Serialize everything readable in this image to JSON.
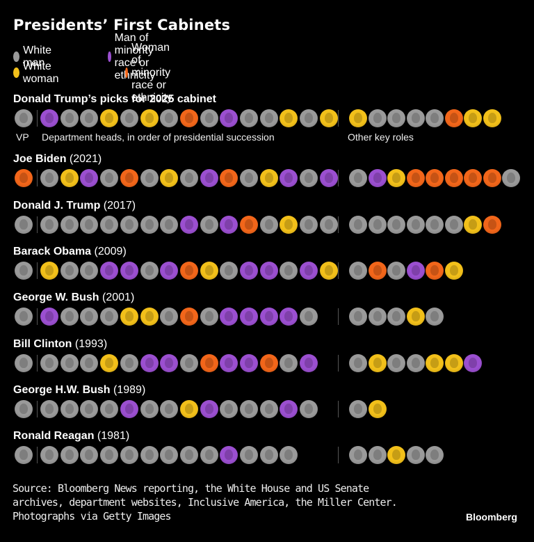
{
  "title": "Presidents’ First Cabinets",
  "legend": [
    {
      "key": "W",
      "label": "White man",
      "color": "#9a9a9a"
    },
    {
      "key": "M",
      "label": "Man of minority race or ethnicity",
      "color": "#9b4fd0"
    },
    {
      "key": "Y",
      "label": "White woman",
      "color": "#f2c01a"
    },
    {
      "key": "O",
      "label": "Woman of minority race or ethnicity",
      "color": "#f2661a"
    }
  ],
  "labels": {
    "vp": "VP",
    "dept": "Department heads, in order of presidential succession",
    "other": "Other key roles"
  },
  "source": [
    "Source: Bloomberg News reporting, the White House and US Senate",
    "archives, department websites, Inclusive America, the Miller Center.",
    "Photographs via Getty Images"
  ],
  "brand": "Bloomberg",
  "chart_data": {
    "type": "table",
    "title": "Presidents’ First Cabinets",
    "encoding": "Each circle is one cabinet member, colored by category: W = White man, M = Man of minority race or ethnicity, Y = White woman, O = Woman of minority race or ethnicity",
    "categories": [
      "White man",
      "Man of minority race or ethnicity",
      "White woman",
      "Woman of minority race or ethnicity"
    ],
    "rows": [
      {
        "name": "Donald Trump’s picks for 2025 cabinet",
        "year": "",
        "vp": "W",
        "department_heads": [
          "M",
          "W",
          "W",
          "Y",
          "W",
          "Y",
          "W",
          "O",
          "W",
          "M",
          "W",
          "W",
          "Y",
          "W",
          "Y"
        ],
        "other_key_roles": [
          "Y",
          "W",
          "W",
          "W",
          "W",
          "O",
          "Y",
          "Y"
        ]
      },
      {
        "name": "Joe Biden",
        "year": "(2021)",
        "vp": "O",
        "department_heads": [
          "W",
          "Y",
          "M",
          "W",
          "O",
          "W",
          "Y",
          "W",
          "M",
          "O",
          "W",
          "Y",
          "M",
          "W",
          "M"
        ],
        "other_key_roles": [
          "W",
          "M",
          "Y",
          "O",
          "O",
          "O",
          "O",
          "O",
          "W"
        ]
      },
      {
        "name": "Donald J. Trump",
        "year": "(2017)",
        "vp": "W",
        "department_heads": [
          "W",
          "W",
          "W",
          "W",
          "W",
          "W",
          "W",
          "M",
          "W",
          "M",
          "O",
          "W",
          "Y",
          "W",
          "W"
        ],
        "other_key_roles": [
          "W",
          "W",
          "W",
          "W",
          "W",
          "W",
          "Y",
          "O"
        ]
      },
      {
        "name": "Barack Obama",
        "year": "(2009)",
        "vp": "W",
        "department_heads": [
          "Y",
          "W",
          "W",
          "M",
          "M",
          "W",
          "M",
          "O",
          "Y",
          "W",
          "M",
          "M",
          "W",
          "M",
          "Y"
        ],
        "other_key_roles": [
          "W",
          "O",
          "W",
          "M",
          "O",
          "Y"
        ]
      },
      {
        "name": "George W. Bush",
        "year": "(2001)",
        "vp": "W",
        "department_heads": [
          "M",
          "W",
          "W",
          "W",
          "Y",
          "Y",
          "W",
          "O",
          "W",
          "M",
          "M",
          "M",
          "M",
          "W"
        ],
        "other_key_roles": [
          "W",
          "W",
          "W",
          "Y",
          "W"
        ]
      },
      {
        "name": "Bill Clinton",
        "year": "(1993)",
        "vp": "W",
        "department_heads": [
          "W",
          "W",
          "W",
          "Y",
          "W",
          "M",
          "M",
          "W",
          "O",
          "M",
          "M",
          "O",
          "W",
          "M"
        ],
        "other_key_roles": [
          "W",
          "Y",
          "W",
          "W",
          "Y",
          "Y",
          "M"
        ]
      },
      {
        "name": "George H.W. Bush",
        "year": "(1989)",
        "vp": "W",
        "department_heads": [
          "W",
          "W",
          "W",
          "W",
          "M",
          "W",
          "W",
          "Y",
          "M",
          "W",
          "W",
          "W",
          "M",
          "W"
        ],
        "other_key_roles": [
          "W",
          "Y"
        ]
      },
      {
        "name": "Ronald Reagan",
        "year": "(1981)",
        "vp": "W",
        "department_heads": [
          "W",
          "W",
          "W",
          "W",
          "W",
          "W",
          "W",
          "W",
          "W",
          "M",
          "W",
          "W",
          "W"
        ],
        "other_key_roles": [
          "W",
          "W",
          "Y",
          "W",
          "W"
        ]
      }
    ]
  }
}
